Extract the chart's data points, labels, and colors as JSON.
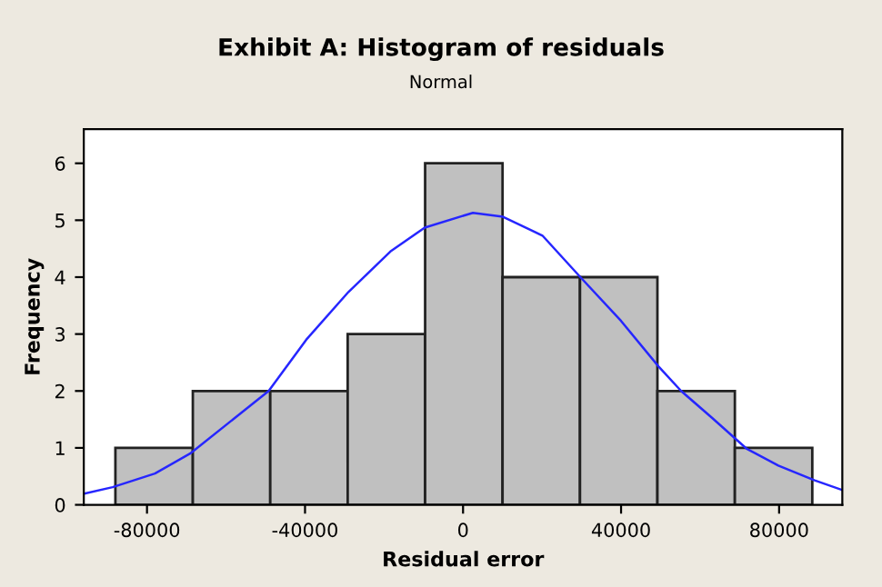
{
  "chart_data": {
    "type": "histogram",
    "title": "Exhibit A: Histogram of residuals",
    "subtitle": "Normal",
    "xlabel": "Residual error",
    "ylabel": "Frequency",
    "bins": [
      -88000,
      -68400,
      -48800,
      -29200,
      -9600,
      10000,
      29600,
      49200,
      68800,
      88400
    ],
    "values": [
      1,
      2,
      2,
      3,
      6,
      4,
      4,
      2,
      1
    ],
    "color": "#c0c0c0",
    "series": [
      {
        "type": "line",
        "color": "#2626ff",
        "x": [
          -95600,
          -88700,
          -78000,
          -69100,
          -49200,
          -39700,
          -29000,
          -18400,
          -9700,
          2500,
          10100,
          20100,
          29700,
          40000,
          49500,
          55200,
          63000,
          71700,
          79800,
          89000,
          96000
        ],
        "values": [
          0.2,
          0.31,
          0.55,
          0.9,
          2.0,
          2.9,
          3.74,
          4.45,
          4.87,
          5.13,
          5.06,
          4.73,
          4.0,
          3.23,
          2.43,
          2.0,
          1.53,
          0.99,
          0.69,
          0.43,
          0.26
        ]
      }
    ],
    "xlim": [
      -96000,
      96000
    ],
    "ylim": [
      0,
      6.6
    ],
    "xticks": [
      -80000,
      -40000,
      0,
      40000,
      80000
    ],
    "yticks": [
      0,
      1,
      2,
      3,
      4,
      5,
      6
    ],
    "grid": false
  }
}
